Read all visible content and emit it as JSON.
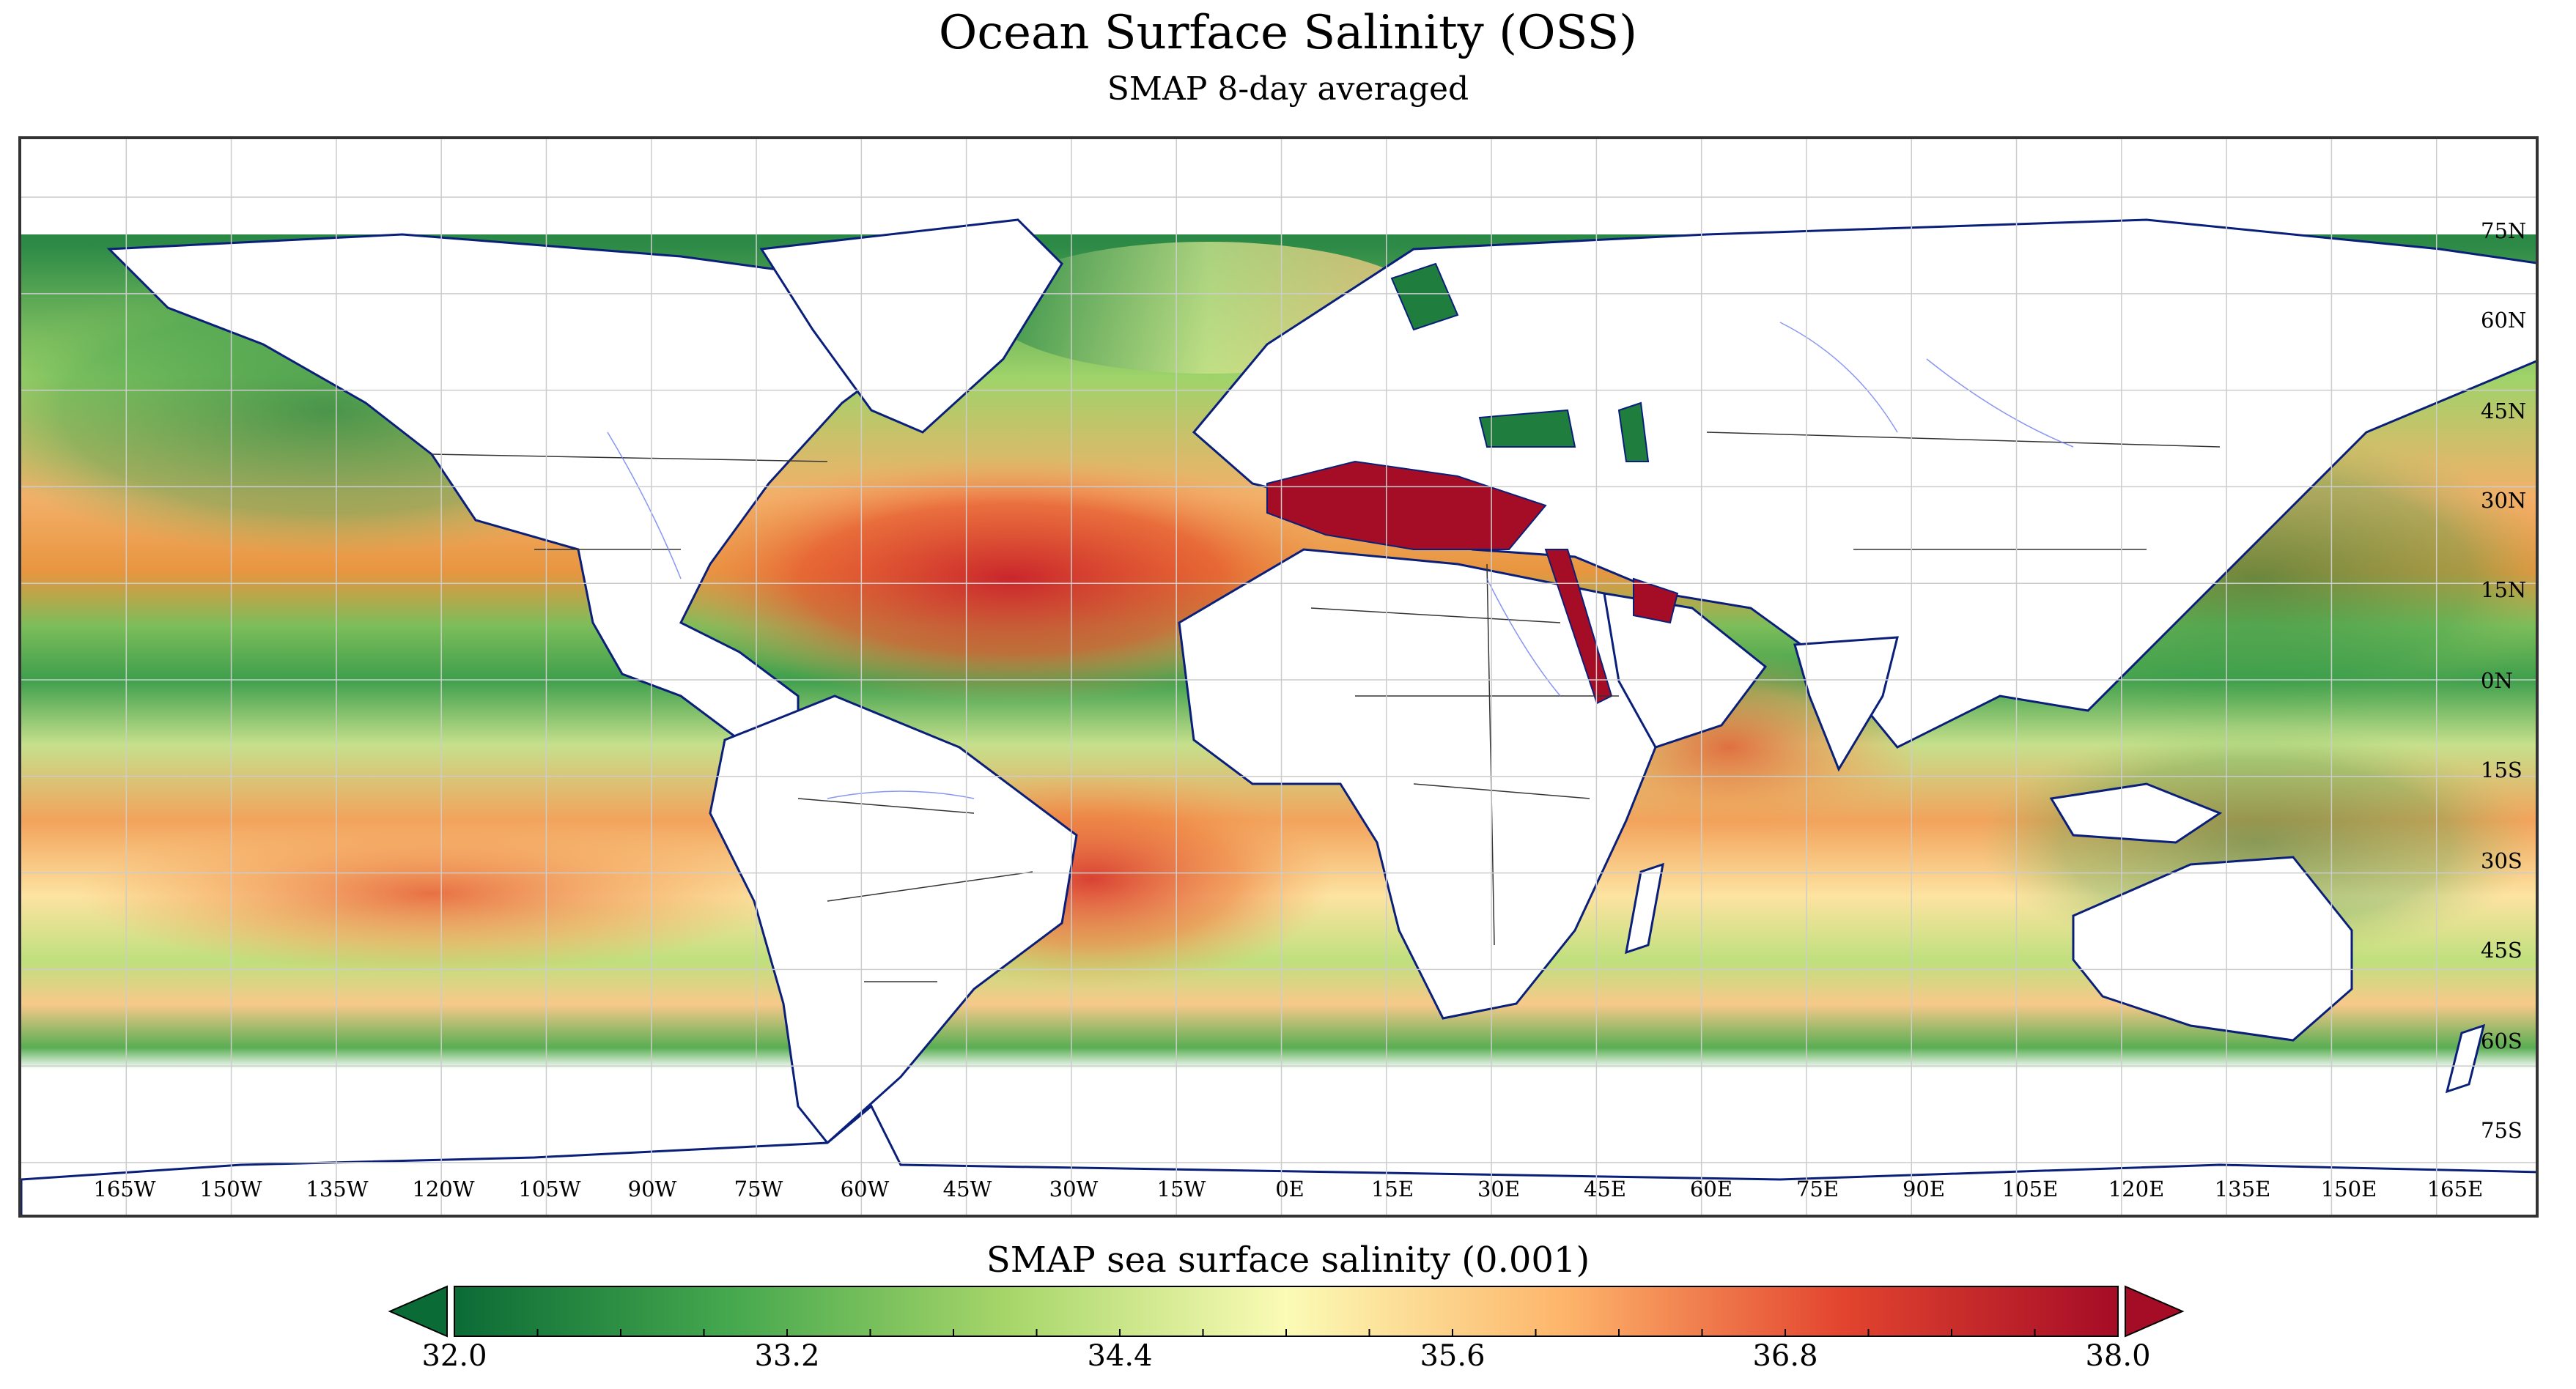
{
  "title": "Ocean Surface Salinity (OSS)",
  "subtitle": "SMAP 8-day averaged",
  "map": {
    "projection": "equirectangular",
    "lon_labels": [
      "165W",
      "150W",
      "135W",
      "120W",
      "105W",
      "90W",
      "75W",
      "60W",
      "45W",
      "30W",
      "15W",
      "0E",
      "15E",
      "30E",
      "45E",
      "60E",
      "75E",
      "90E",
      "105E",
      "120E",
      "135E",
      "150E",
      "165E"
    ],
    "lat_labels": [
      "75N",
      "60N",
      "45N",
      "30N",
      "15N",
      "0N",
      "15S",
      "30S",
      "45S",
      "60S",
      "75S"
    ],
    "colors": {
      "land": "#ffffff",
      "coastline": "#0a1f7a",
      "rivers": "#6a7cf0",
      "borders": "#333333",
      "gridlines": "#cccccc"
    }
  },
  "colorbar": {
    "label": "SMAP sea surface salinity (0.001)",
    "min": 32.0,
    "max": 38.0,
    "tick_labels": [
      "32.0",
      "33.2",
      "34.4",
      "35.6",
      "36.8",
      "38.0"
    ],
    "extend": "both",
    "colors": [
      "#0b6b36",
      "#46a84e",
      "#a7d66a",
      "#fbfbb6",
      "#fdb56b",
      "#e3452f",
      "#a50c26"
    ]
  }
}
